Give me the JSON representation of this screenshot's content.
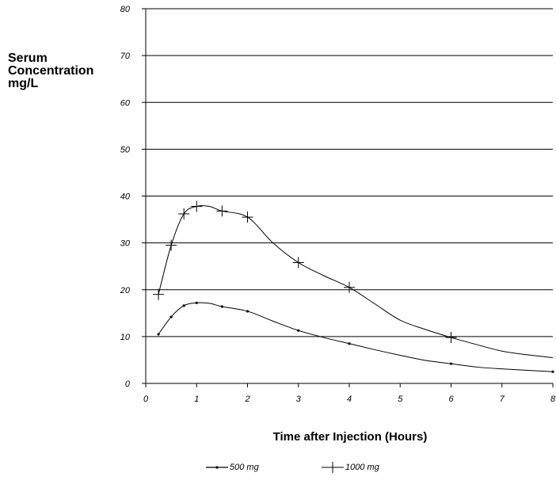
{
  "chart_data": {
    "type": "line",
    "title": "",
    "ylabel_lines": [
      "Serum",
      "Concentration",
      "mg/L"
    ],
    "xlabel": "Time after Injection (Hours)",
    "xlim": [
      0,
      8
    ],
    "ylim": [
      0,
      80
    ],
    "x_ticks": [
      0,
      1,
      2,
      3,
      4,
      5,
      6,
      7,
      8
    ],
    "y_ticks": [
      0,
      10,
      20,
      30,
      40,
      50,
      60,
      70,
      80
    ],
    "grid": "horizontal",
    "legend_position": "bottom",
    "series": [
      {
        "name": "500 mg",
        "marker": "dot",
        "color": "#000000",
        "curve": [
          [
            0.25,
            10.5
          ],
          [
            0.5,
            14.2
          ],
          [
            0.75,
            16.6
          ],
          [
            1.0,
            17.2
          ],
          [
            1.25,
            17.1
          ],
          [
            1.5,
            16.4
          ],
          [
            2.0,
            15.4
          ],
          [
            2.5,
            13.3
          ],
          [
            3.0,
            11.3
          ],
          [
            3.5,
            9.8
          ],
          [
            4.0,
            8.5
          ],
          [
            4.5,
            7.2
          ],
          [
            5.0,
            6.0
          ],
          [
            5.5,
            4.9
          ],
          [
            6.0,
            4.2
          ],
          [
            6.5,
            3.5
          ],
          [
            7.0,
            3.1
          ],
          [
            7.5,
            2.8
          ],
          [
            8.0,
            2.5
          ]
        ],
        "markers": [
          [
            0.25,
            10.5
          ],
          [
            0.5,
            14.2
          ],
          [
            0.75,
            16.6
          ],
          [
            1.0,
            17.2
          ],
          [
            1.5,
            16.4
          ],
          [
            2.0,
            15.4
          ],
          [
            3.0,
            11.3
          ],
          [
            4.0,
            8.5
          ],
          [
            6.0,
            4.2
          ],
          [
            8.0,
            2.5
          ]
        ]
      },
      {
        "name": "1000 mg",
        "marker": "plus",
        "color": "#000000",
        "curve": [
          [
            0.25,
            19.0
          ],
          [
            0.5,
            29.5
          ],
          [
            0.75,
            36.2
          ],
          [
            1.0,
            37.8
          ],
          [
            1.25,
            37.8
          ],
          [
            1.5,
            36.8
          ],
          [
            2.0,
            35.5
          ],
          [
            2.5,
            30.0
          ],
          [
            3.0,
            25.8
          ],
          [
            3.5,
            23.0
          ],
          [
            4.0,
            20.5
          ],
          [
            4.5,
            17.0
          ],
          [
            5.0,
            13.5
          ],
          [
            5.5,
            11.5
          ],
          [
            6.0,
            9.8
          ],
          [
            6.5,
            8.3
          ],
          [
            7.0,
            6.9
          ],
          [
            7.5,
            6.1
          ],
          [
            8.0,
            5.5
          ]
        ],
        "markers": [
          [
            0.25,
            19.0
          ],
          [
            0.5,
            29.5
          ],
          [
            0.75,
            36.2
          ],
          [
            1.0,
            37.8
          ],
          [
            1.5,
            36.8
          ],
          [
            2.0,
            35.5
          ],
          [
            3.0,
            25.8
          ],
          [
            4.0,
            20.5
          ],
          [
            6.0,
            9.8
          ]
        ]
      }
    ]
  },
  "legend": {
    "item_500": "500 mg",
    "item_1000": "1000 mg"
  }
}
